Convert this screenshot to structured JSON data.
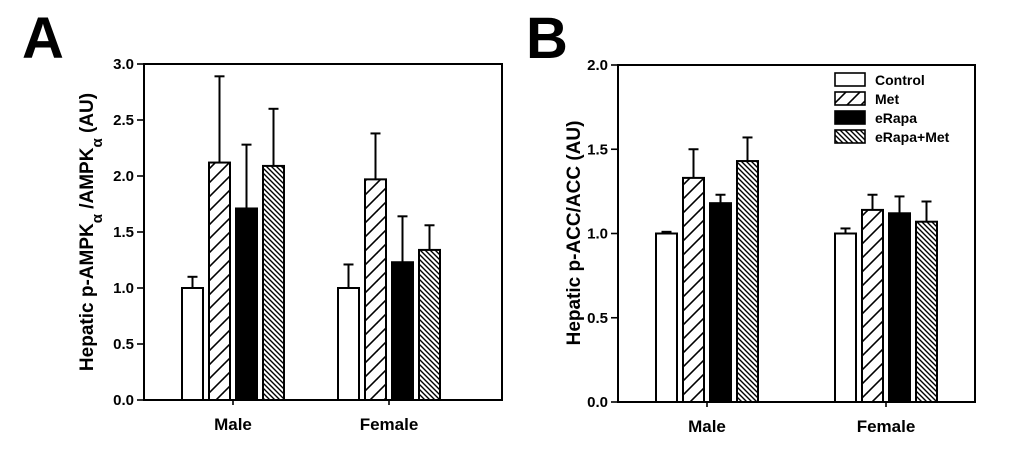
{
  "chart_data": [
    {
      "type": "bar",
      "panel": "A",
      "title": "",
      "xlabel": "",
      "ylabel": "Hepatic p-AMPKα /AMPKα (AU)",
      "ylabel_parts": [
        "Hepatic p-AMPK",
        "α",
        " /AMPK",
        "α",
        " (AU)"
      ],
      "ylim": [
        0,
        3.0
      ],
      "yticks": [
        "0.0",
        "0.5",
        "1.0",
        "1.5",
        "2.0",
        "2.5",
        "3.0"
      ],
      "ytick_values": [
        0,
        0.5,
        1.0,
        1.5,
        2.0,
        2.5,
        3.0
      ],
      "grid": false,
      "categories": [
        "Male",
        "Female"
      ],
      "series": [
        {
          "name": "Control",
          "pattern": "open",
          "values": [
            1.0,
            1.0
          ],
          "errors": [
            0.1,
            0.21
          ]
        },
        {
          "name": "Met",
          "pattern": "hatch-wide",
          "values": [
            2.12,
            1.97
          ],
          "errors": [
            0.77,
            0.41
          ]
        },
        {
          "name": "eRapa",
          "pattern": "solid",
          "values": [
            1.71,
            1.23
          ],
          "errors": [
            0.57,
            0.41
          ]
        },
        {
          "name": "eRapa+Met",
          "pattern": "hatch-dense",
          "values": [
            2.09,
            1.34
          ],
          "errors": [
            0.51,
            0.22
          ]
        }
      ],
      "legend": null
    },
    {
      "type": "bar",
      "panel": "B",
      "title": "",
      "xlabel": "",
      "ylabel": "Hepatic p-ACC/ACC (AU)",
      "ylim": [
        0,
        2.0
      ],
      "yticks": [
        "0.0",
        "0.5",
        "1.0",
        "1.5",
        "2.0"
      ],
      "ytick_values": [
        0,
        0.5,
        1.0,
        1.5,
        2.0
      ],
      "grid": false,
      "categories": [
        "Male",
        "Female"
      ],
      "series": [
        {
          "name": "Control",
          "pattern": "open",
          "values": [
            1.0,
            1.0
          ],
          "errors": [
            0.01,
            0.03
          ]
        },
        {
          "name": "Met",
          "pattern": "hatch-wide",
          "values": [
            1.33,
            1.14
          ],
          "errors": [
            0.17,
            0.09
          ]
        },
        {
          "name": "eRapa",
          "pattern": "solid",
          "values": [
            1.18,
            1.12
          ],
          "errors": [
            0.05,
            0.1
          ]
        },
        {
          "name": "eRapa+Met",
          "pattern": "hatch-dense",
          "values": [
            1.43,
            1.07
          ],
          "errors": [
            0.14,
            0.12
          ]
        }
      ],
      "legend": {
        "placement": "top-right",
        "entries": [
          "Control",
          "Met",
          "eRapa",
          "eRapa+Met"
        ]
      }
    }
  ],
  "colors": {
    "ink": "#000000",
    "background": "#ffffff"
  }
}
